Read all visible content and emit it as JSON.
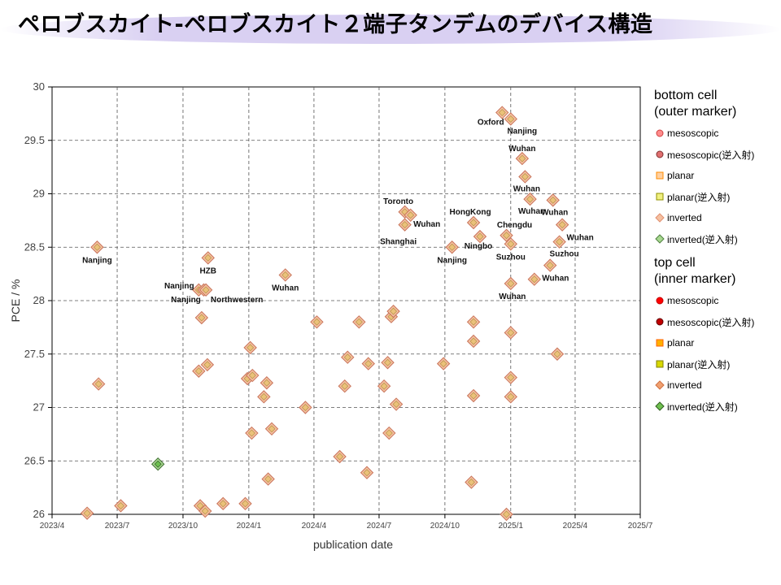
{
  "page": {
    "title": "ペロブスカイト-ペロブスカイト２端子タンデムのデバイス構造"
  },
  "chart_data": {
    "type": "scatter",
    "xlabel": "publication date",
    "ylabel": "PCE / %",
    "ylim": [
      26,
      30
    ],
    "xlim": [
      "2023/4",
      "2025/7"
    ],
    "yticks": [
      "26",
      "26.5",
      "27",
      "27.5",
      "28",
      "28.5",
      "29",
      "29.5",
      "30"
    ],
    "xticks": [
      "2023/4",
      "2023/7",
      "2023/10",
      "2024/1",
      "2024/4",
      "2024/7",
      "2024/10",
      "2025/1",
      "2025/4",
      "2025/7"
    ],
    "grid": true,
    "legend_position": "right",
    "legend": {
      "bottom_title_1": "bottom cell",
      "bottom_title_2": "(outer marker)",
      "top_title_1": "top cell",
      "top_title_2": "(inner marker)",
      "bottom_items": [
        {
          "label": "mesoscopic",
          "shape": "circle",
          "fill": "#ff8c8c",
          "stroke": "#d04040"
        },
        {
          "label": "mesoscopic(逆入射)",
          "shape": "circle",
          "fill": "#e07070",
          "stroke": "#803030"
        },
        {
          "label": "planar",
          "shape": "square",
          "fill": "#ffd0a0",
          "stroke": "#ff8c00"
        },
        {
          "label": "planar(逆入射)",
          "shape": "square",
          "fill": "#f0f080",
          "stroke": "#909000"
        },
        {
          "label": "inverted",
          "shape": "diamond",
          "fill": "#f5c0a0",
          "stroke": "#e09070"
        },
        {
          "label": "inverted(逆入射)",
          "shape": "diamond",
          "fill": "#a8d890",
          "stroke": "#508040"
        }
      ],
      "top_items": [
        {
          "label": "mesoscopic",
          "shape": "circle",
          "fill": "#ff0000",
          "stroke": "#c00000"
        },
        {
          "label": "mesoscopic(逆入射)",
          "shape": "circle",
          "fill": "#c00000",
          "stroke": "#600000"
        },
        {
          "label": "planar",
          "shape": "square",
          "fill": "#ffb000",
          "stroke": "#ff6000"
        },
        {
          "label": "planar(逆入射)",
          "shape": "square",
          "fill": "#d8d800",
          "stroke": "#808000"
        },
        {
          "label": "inverted",
          "shape": "diamond",
          "fill": "#f0a070",
          "stroke": "#d07040"
        },
        {
          "label": "inverted(逆入射)",
          "shape": "diamond",
          "fill": "#70c050",
          "stroke": "#306020"
        }
      ]
    },
    "points": [
      {
        "x": "2023-05-20",
        "y": 26.01,
        "label": ""
      },
      {
        "x": "2023-06-03",
        "y": 28.5,
        "label": "Nanjing"
      },
      {
        "x": "2023-06-05",
        "y": 27.22,
        "label": ""
      },
      {
        "x": "2023-07-06",
        "y": 26.08,
        "label": ""
      },
      {
        "x": "2023-08-27",
        "y": 26.47,
        "label": "",
        "style": "green"
      },
      {
        "x": "2023-10-23",
        "y": 28.1,
        "label": "Nanjing"
      },
      {
        "x": "2023-10-25",
        "y": 26.08,
        "label": ""
      },
      {
        "x": "2023-10-23",
        "y": 27.34,
        "label": ""
      },
      {
        "x": "2023-10-27",
        "y": 27.84,
        "label": ""
      },
      {
        "x": "2023-10-30",
        "y": 28.1,
        "label": "Nanjing"
      },
      {
        "x": "2023-11-01",
        "y": 26.03,
        "label": ""
      },
      {
        "x": "2023-11-04",
        "y": 27.4,
        "label": ""
      },
      {
        "x": "2023-11-05",
        "y": 28.4,
        "label": "HZB"
      },
      {
        "x": "2023-11-26",
        "y": 26.1,
        "label": ""
      },
      {
        "x": "2023-12-27",
        "y": 26.1,
        "label": ""
      },
      {
        "x": "2023-12-30",
        "y": 27.27,
        "label": ""
      },
      {
        "x": "2024-01-03",
        "y": 27.56,
        "label": ""
      },
      {
        "x": "2024-01-05",
        "y": 26.76,
        "label": ""
      },
      {
        "x": "2024-01-06",
        "y": 27.3,
        "label": ""
      },
      {
        "x": "2024-01-22",
        "y": 27.1,
        "label": ""
      },
      {
        "x": "2024-01-26",
        "y": 27.23,
        "label": ""
      },
      {
        "x": "2024-01-28",
        "y": 26.33,
        "label": ""
      },
      {
        "x": "2024-02-02",
        "y": 26.8,
        "label": ""
      },
      {
        "x": "2024-02-21",
        "y": 28.24,
        "label": "Wuhan"
      },
      {
        "x": "2024-03-20",
        "y": 27.0,
        "label": ""
      },
      {
        "x": "2024-04-05",
        "y": 27.8,
        "label": ""
      },
      {
        "x": "2024-05-07",
        "y": 26.54,
        "label": ""
      },
      {
        "x": "2024-05-14",
        "y": 27.2,
        "label": ""
      },
      {
        "x": "2024-05-18",
        "y": 27.47,
        "label": ""
      },
      {
        "x": "2024-06-03",
        "y": 27.8,
        "label": ""
      },
      {
        "x": "2024-06-14",
        "y": 26.39,
        "label": ""
      },
      {
        "x": "2024-06-16",
        "y": 27.41,
        "label": ""
      },
      {
        "x": "2024-07-08",
        "y": 27.2,
        "label": ""
      },
      {
        "x": "2024-07-13",
        "y": 27.42,
        "label": ""
      },
      {
        "x": "2024-07-15",
        "y": 26.76,
        "label": ""
      },
      {
        "x": "2024-07-18",
        "y": 27.85,
        "label": ""
      },
      {
        "x": "2024-07-21",
        "y": 27.9,
        "label": ""
      },
      {
        "x": "2024-07-25",
        "y": 27.03,
        "label": ""
      },
      {
        "x": "2024-08-06",
        "y": 28.83,
        "label": "Toronto"
      },
      {
        "x": "2024-08-06",
        "y": 28.71,
        "label": "Shanghai"
      },
      {
        "x": "2024-08-14",
        "y": 28.8,
        "label": "Wuhan"
      },
      {
        "x": "2024-09-29",
        "y": 27.41,
        "label": ""
      },
      {
        "x": "2024-10-11",
        "y": 28.5,
        "label": "Nanjing"
      },
      {
        "x": "2024-11-07",
        "y": 26.3,
        "label": ""
      },
      {
        "x": "2024-11-10",
        "y": 28.73,
        "label": "HongKong"
      },
      {
        "x": "2024-11-10",
        "y": 27.11,
        "label": ""
      },
      {
        "x": "2024-11-10",
        "y": 27.8,
        "label": ""
      },
      {
        "x": "2024-11-10",
        "y": 27.62,
        "label": ""
      },
      {
        "x": "2024-11-19",
        "y": 28.6,
        "label": "Ningbo"
      },
      {
        "x": "2024-12-20",
        "y": 29.76,
        "label": "Oxford"
      },
      {
        "x": "2024-12-26",
        "y": 26.0,
        "label": ""
      },
      {
        "x": "2024-12-26",
        "y": 28.61,
        "label": "Chengdu"
      },
      {
        "x": "2025-01-01",
        "y": 29.7,
        "label": "Nanjing"
      },
      {
        "x": "2025-01-01",
        "y": 28.53,
        "label": "Suzhou"
      },
      {
        "x": "2025-01-01",
        "y": 28.16,
        "label": "Wuhan"
      },
      {
        "x": "2025-01-01",
        "y": 27.7,
        "label": ""
      },
      {
        "x": "2025-01-01",
        "y": 27.28,
        "label": ""
      },
      {
        "x": "2025-01-01",
        "y": 27.1,
        "label": ""
      },
      {
        "x": "2025-01-17",
        "y": 29.33,
        "label": "Wuhan"
      },
      {
        "x": "2025-01-21",
        "y": 29.16,
        "label": "Wuhan"
      },
      {
        "x": "2025-01-28",
        "y": 28.95,
        "label": "Wuhan"
      },
      {
        "x": "2025-02-03",
        "y": 28.2,
        "label": "Wuhan"
      },
      {
        "x": "2025-02-25",
        "y": 28.33,
        "label": ""
      },
      {
        "x": "2025-03-01",
        "y": 28.94,
        "label": "Wuhan"
      },
      {
        "x": "2025-03-07",
        "y": 27.5,
        "label": ""
      },
      {
        "x": "2025-03-10",
        "y": 28.55,
        "label": "Suzhou"
      },
      {
        "x": "2025-03-14",
        "y": 28.71,
        "label": "Wuhan"
      },
      {
        "x": "2023-11-02",
        "y": 28.1,
        "label": "Northwestern"
      }
    ]
  }
}
